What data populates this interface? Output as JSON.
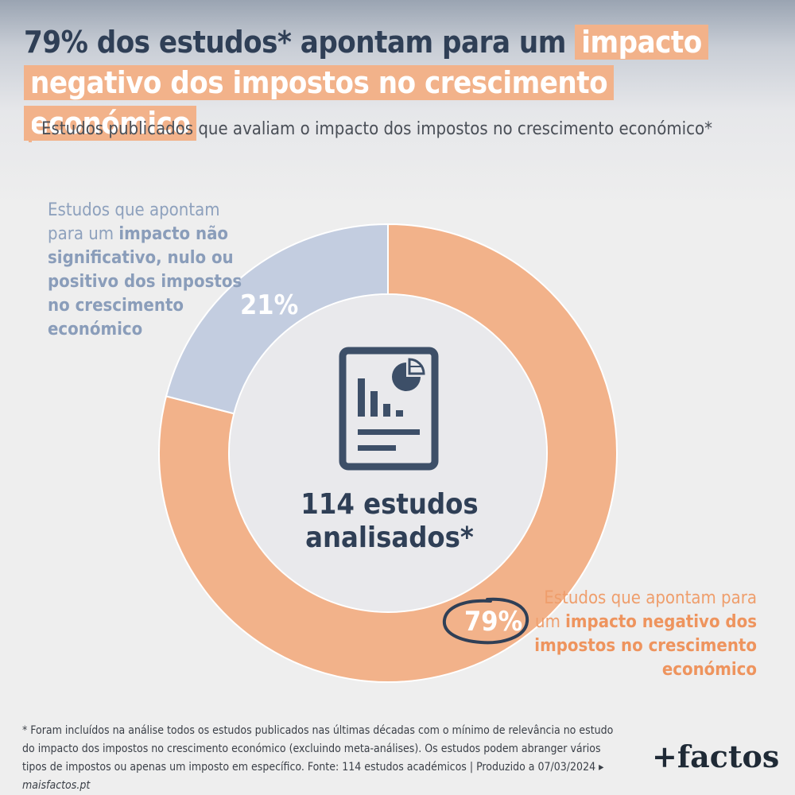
{
  "title": {
    "part1": "79% dos estudos* apontam para um",
    "highlight": "impacto negativo dos impostos no crescimento económico"
  },
  "subtitle": "Estudos publicados que avaliam o impacto dos impostos no crescimento económico*",
  "colors": {
    "negative": "#f2b28a",
    "non_negative": "#c3cde0",
    "center": "#e9e9ec",
    "dark": "#2f3f56"
  },
  "labels": {
    "left_plain": "Estudos que apontam para um",
    "left_bold": "impacto não significativo, nulo ou positivo dos impostos no crescimento económico",
    "right_plain": "Estudos que apontam para um",
    "right_bold": "impacto negativo dos impostos no crescimento económico"
  },
  "center": {
    "icon": "document-chart-icon",
    "line1": "114 estudos",
    "line2": "analisados*"
  },
  "footnote": {
    "text": "* Foram incluídos na análise todos os estudos publicados nas últimas décadas com o mínimo de relevância no estudo do impacto dos impostos no crescimento económico (excluindo meta-análises). Os estudos podem abranger vários tipos de impostos ou apenas um imposto em específico. Fonte: 114 estudos académicos | Produzido a 07/03/2024 ▸",
    "site": "maisfactos.pt"
  },
  "brand": "+factos",
  "chart_data": {
    "type": "pie",
    "categories": [
      "impacto negativo dos impostos no crescimento económico",
      "impacto não significativo, nulo ou positivo dos impostos no crescimento económico"
    ],
    "values": [
      79,
      21
    ],
    "value_labels": [
      "79%",
      "21%"
    ],
    "colors": [
      "#f2b28a",
      "#c3cde0"
    ],
    "donut": true
  }
}
